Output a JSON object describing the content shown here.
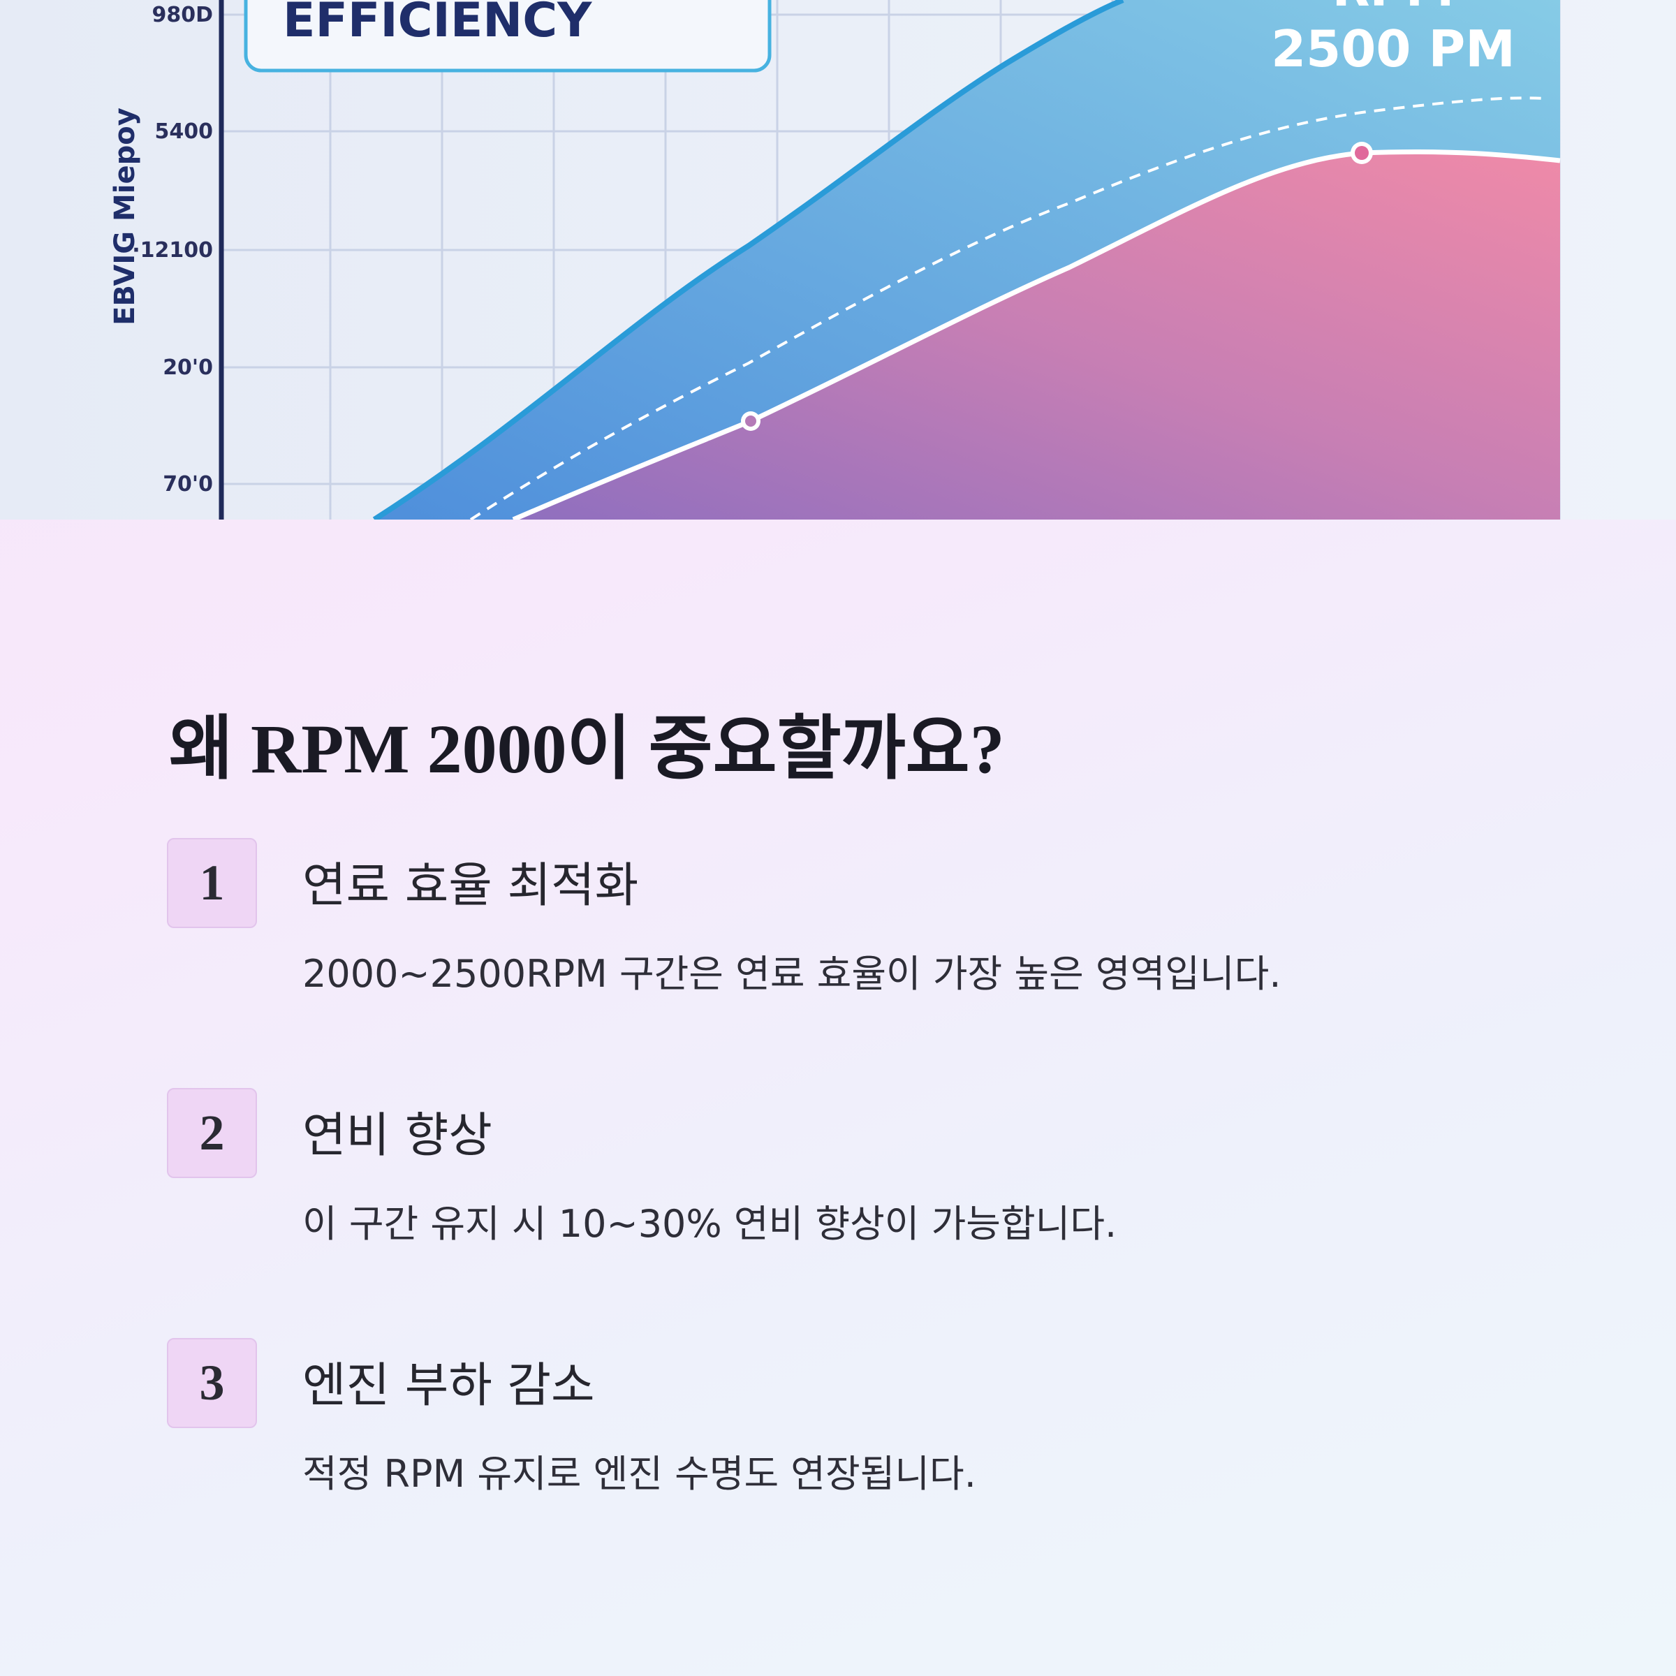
{
  "hero_image": {
    "title": "EFFICIENCY",
    "rpm_label": "RPM",
    "rpm_value": "2500 PM",
    "axis_title": "EBVIG Miepoy",
    "y_labels": [
      "980D",
      "5400",
      "·12100",
      "20'0",
      "70'0"
    ]
  },
  "heading": "왜 RPM 2000이 중요할까요?",
  "items": [
    {
      "number": "1",
      "title": "연료 효율 최적화",
      "description": "2000~2500RPM 구간은 연료 효율이 가장 높은 영역입니다."
    },
    {
      "number": "2",
      "title": "연비 향상",
      "description": "이 구간 유지 시 10~30% 연비 향상이 가능합니다."
    },
    {
      "number": "3",
      "title": "엔진 부하 감소",
      "description": "적정 RPM 유지로 엔진 수명도 연장됩니다."
    }
  ]
}
